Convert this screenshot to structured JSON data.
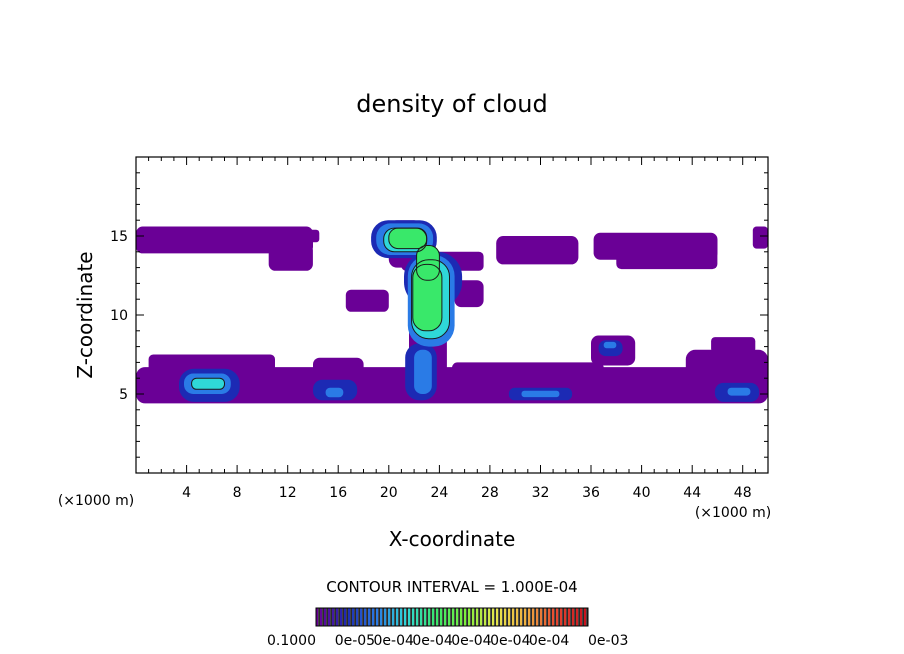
{
  "chart_data": {
    "type": "heatmap",
    "title": "density of cloud",
    "xlabel": "X-coordinate",
    "ylabel": "Z-coordinate",
    "x_unit": "(×1000 m)",
    "y_unit": "(×1000 m)",
    "xlim": [
      0,
      50
    ],
    "ylim": [
      0,
      20
    ],
    "x_ticks": [
      4,
      8,
      12,
      16,
      20,
      24,
      28,
      32,
      36,
      40,
      44,
      48
    ],
    "y_ticks": [
      5,
      10,
      15
    ],
    "contour_interval_label": "CONTOUR INTERVAL = 1.000E-04",
    "colorbar": {
      "colors": [
        "#6a0096",
        "#1c2ab4",
        "#2a7be6",
        "#2fd8d8",
        "#39e86a",
        "#7ef03c",
        "#e6e84c",
        "#f0b040",
        "#e84830",
        "#c8141e"
      ],
      "tick_labels": [
        "0.1000",
        "0e-05",
        "0e-04",
        "0e-04",
        "0e-04",
        "0e-04",
        "0e-04",
        "0e-03"
      ]
    },
    "levels": [
      {
        "level": 1,
        "color": "#6a0096",
        "regions": [
          {
            "x": [
              0,
              14
            ],
            "z": [
              13.9,
              15.6
            ]
          },
          {
            "x": [
              3,
              14.5
            ],
            "z": [
              14.6,
              15.4
            ]
          },
          {
            "x": [
              10.5,
              14
            ],
            "z": [
              12.8,
              14.5
            ]
          },
          {
            "x": [
              21,
              27.5
            ],
            "z": [
              12.8,
              14.0
            ]
          },
          {
            "x": [
              20,
              22.6
            ],
            "z": [
              13.0,
              16.0
            ]
          },
          {
            "x": [
              28.5,
              35
            ],
            "z": [
              13.2,
              15.0
            ]
          },
          {
            "x": [
              36.2,
              46
            ],
            "z": [
              13.5,
              15.2
            ]
          },
          {
            "x": [
              38,
              46
            ],
            "z": [
              12.9,
              14.2
            ]
          },
          {
            "x": [
              48.8,
              50
            ],
            "z": [
              14.2,
              15.6
            ]
          },
          {
            "x": [
              21.6,
              24.6
            ],
            "z": [
              6.0,
              12.0
            ]
          },
          {
            "x": [
              0,
              50
            ],
            "z": [
              4.4,
              6.7
            ]
          },
          {
            "x": [
              1,
              11
            ],
            "z": [
              6.3,
              7.5
            ]
          },
          {
            "x": [
              14,
              18
            ],
            "z": [
              5.6,
              7.3
            ]
          },
          {
            "x": [
              25,
              37
            ],
            "z": [
              5.6,
              7.0
            ]
          },
          {
            "x": [
              36,
              39.5
            ],
            "z": [
              6.8,
              8.7
            ]
          },
          {
            "x": [
              43.5,
              50
            ],
            "z": [
              5.4,
              7.8
            ]
          },
          {
            "x": [
              45.5,
              49
            ],
            "z": [
              7.6,
              8.6
            ]
          },
          {
            "x": [
              16.6,
              20
            ],
            "z": [
              10.2,
              11.6
            ]
          },
          {
            "x": [
              25.2,
              27.5
            ],
            "z": [
              10.5,
              12.2
            ]
          }
        ]
      },
      {
        "level": 2,
        "color": "#1c2ab4",
        "regions": [
          {
            "x": [
              3.4,
              8.2
            ],
            "z": [
              4.5,
              6.6
            ]
          },
          {
            "x": [
              14,
              17.5
            ],
            "z": [
              4.6,
              5.9
            ]
          },
          {
            "x": [
              21.3,
              23.8
            ],
            "z": [
              4.6,
              8.2
            ]
          },
          {
            "x": [
              29.5,
              34.5
            ],
            "z": [
              4.6,
              5.4
            ]
          },
          {
            "x": [
              36.6,
              38.5
            ],
            "z": [
              7.4,
              8.4
            ]
          },
          {
            "x": [
              45.8,
              49.3
            ],
            "z": [
              4.5,
              5.7
            ]
          },
          {
            "x": [
              21.2,
              25.8
            ],
            "z": [
              10.5,
              14.0
            ]
          },
          {
            "x": [
              18.6,
              23.8
            ],
            "z": [
              13.6,
              16.0
            ]
          }
        ]
      },
      {
        "level": 3,
        "color": "#2a7be6",
        "regions": [
          {
            "x": [
              3.8,
              7.5
            ],
            "z": [
              5.0,
              6.3
            ]
          },
          {
            "x": [
              15,
              16.4
            ],
            "z": [
              4.8,
              5.4
            ]
          },
          {
            "x": [
              22.0,
              23.4
            ],
            "z": [
              5.0,
              7.8
            ]
          },
          {
            "x": [
              30.5,
              33.5
            ],
            "z": [
              4.8,
              5.2
            ]
          },
          {
            "x": [
              37,
              38
            ],
            "z": [
              7.9,
              8.3
            ]
          },
          {
            "x": [
              46.8,
              48.6
            ],
            "z": [
              4.9,
              5.4
            ]
          },
          {
            "x": [
              21.5,
              25.2
            ],
            "z": [
              8.0,
              13.8
            ]
          },
          {
            "x": [
              19,
              23.5
            ],
            "z": [
              13.8,
              15.8
            ]
          }
        ]
      },
      {
        "level": 4,
        "color": "#2fd8d8",
        "regions": [
          {
            "x": [
              4.4,
              7.0
            ],
            "z": [
              5.3,
              6.0
            ]
          },
          {
            "x": [
              21.8,
              24.8
            ],
            "z": [
              8.5,
              13.5
            ]
          },
          {
            "x": [
              19.6,
              23.0
            ],
            "z": [
              14.0,
              15.5
            ]
          }
        ]
      },
      {
        "level": 5,
        "color": "#39e86a",
        "regions": [
          {
            "x": [
              21.9,
              24.2
            ],
            "z": [
              9.0,
              13.2
            ]
          },
          {
            "x": [
              20.0,
              23.0
            ],
            "z": [
              14.2,
              15.5
            ]
          },
          {
            "x": [
              22.2,
              24.0
            ],
            "z": [
              12.2,
              14.4
            ]
          }
        ]
      }
    ]
  }
}
